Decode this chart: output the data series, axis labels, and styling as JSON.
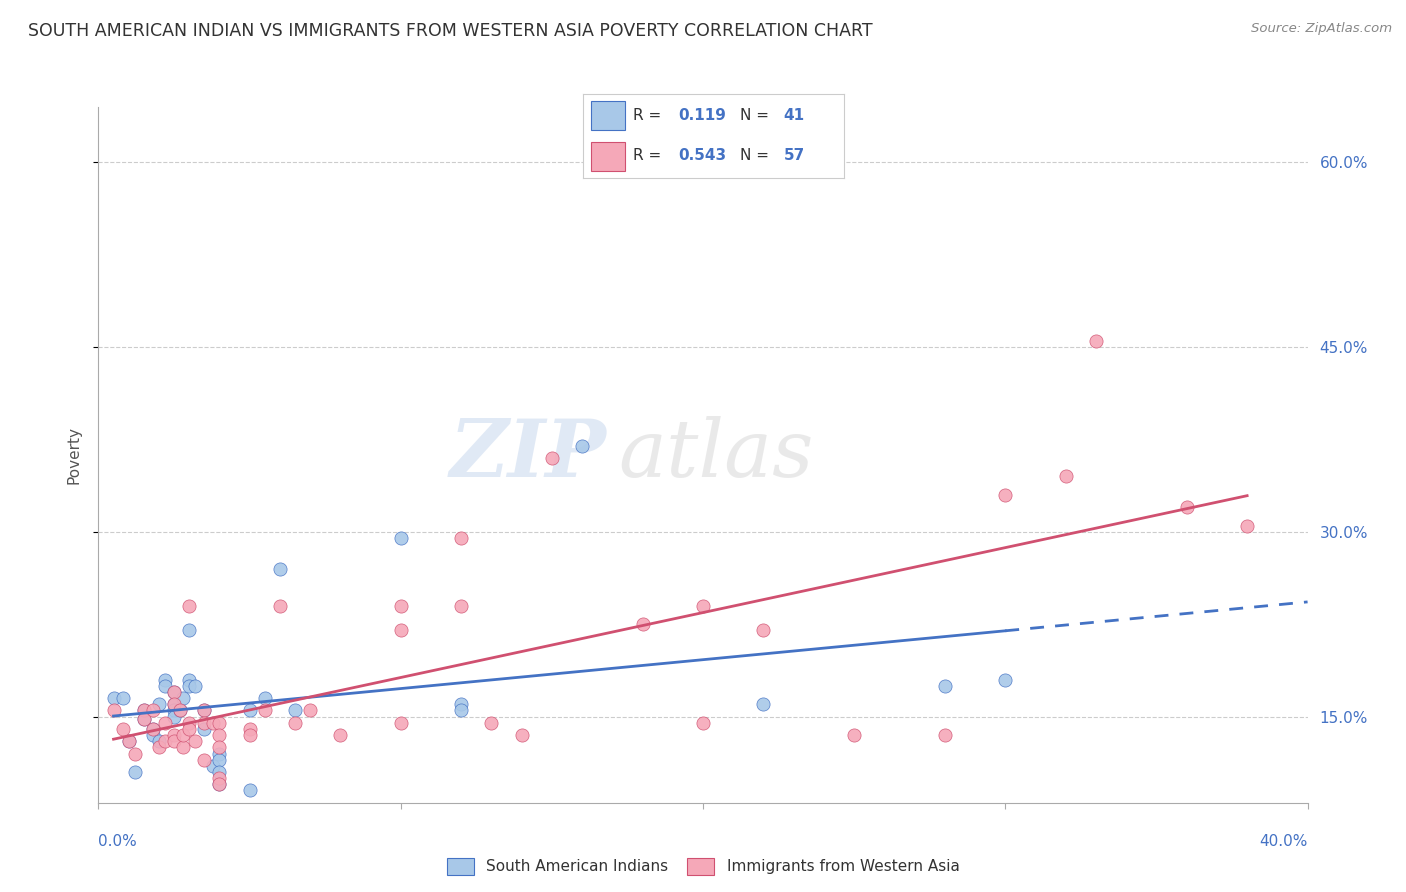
{
  "title": "SOUTH AMERICAN INDIAN VS IMMIGRANTS FROM WESTERN ASIA POVERTY CORRELATION CHART",
  "source": "Source: ZipAtlas.com",
  "ylabel": "Poverty",
  "ytick_labels": [
    "15.0%",
    "30.0%",
    "45.0%",
    "60.0%"
  ],
  "ytick_values": [
    0.15,
    0.3,
    0.45,
    0.6
  ],
  "xlim": [
    0.0,
    0.4
  ],
  "ylim": [
    0.08,
    0.645
  ],
  "legend1_r": "0.119",
  "legend1_n": "41",
  "legend2_r": "0.543",
  "legend2_n": "57",
  "legend_label1": "South American Indians",
  "legend_label2": "Immigrants from Western Asia",
  "watermark_zip": "ZIP",
  "watermark_atlas": "atlas",
  "blue_color": "#a8c8e8",
  "pink_color": "#f5a8b8",
  "blue_line_color": "#4472c4",
  "pink_line_color": "#d05070",
  "blue_scatter": [
    [
      0.005,
      0.165
    ],
    [
      0.008,
      0.165
    ],
    [
      0.01,
      0.13
    ],
    [
      0.012,
      0.105
    ],
    [
      0.015,
      0.155
    ],
    [
      0.015,
      0.148
    ],
    [
      0.018,
      0.14
    ],
    [
      0.018,
      0.135
    ],
    [
      0.02,
      0.16
    ],
    [
      0.02,
      0.13
    ],
    [
      0.022,
      0.18
    ],
    [
      0.022,
      0.175
    ],
    [
      0.025,
      0.16
    ],
    [
      0.025,
      0.155
    ],
    [
      0.025,
      0.15
    ],
    [
      0.025,
      0.17
    ],
    [
      0.027,
      0.155
    ],
    [
      0.028,
      0.165
    ],
    [
      0.03,
      0.22
    ],
    [
      0.03,
      0.18
    ],
    [
      0.03,
      0.175
    ],
    [
      0.032,
      0.175
    ],
    [
      0.035,
      0.155
    ],
    [
      0.035,
      0.14
    ],
    [
      0.038,
      0.11
    ],
    [
      0.04,
      0.12
    ],
    [
      0.04,
      0.115
    ],
    [
      0.04,
      0.105
    ],
    [
      0.04,
      0.095
    ],
    [
      0.05,
      0.09
    ],
    [
      0.05,
      0.155
    ],
    [
      0.055,
      0.165
    ],
    [
      0.06,
      0.27
    ],
    [
      0.065,
      0.155
    ],
    [
      0.1,
      0.295
    ],
    [
      0.12,
      0.16
    ],
    [
      0.12,
      0.155
    ],
    [
      0.16,
      0.37
    ],
    [
      0.22,
      0.16
    ],
    [
      0.28,
      0.175
    ],
    [
      0.3,
      0.18
    ]
  ],
  "pink_scatter": [
    [
      0.005,
      0.155
    ],
    [
      0.008,
      0.14
    ],
    [
      0.01,
      0.13
    ],
    [
      0.012,
      0.12
    ],
    [
      0.015,
      0.155
    ],
    [
      0.015,
      0.148
    ],
    [
      0.018,
      0.155
    ],
    [
      0.018,
      0.14
    ],
    [
      0.02,
      0.125
    ],
    [
      0.022,
      0.13
    ],
    [
      0.022,
      0.145
    ],
    [
      0.025,
      0.17
    ],
    [
      0.025,
      0.16
    ],
    [
      0.025,
      0.135
    ],
    [
      0.025,
      0.13
    ],
    [
      0.027,
      0.155
    ],
    [
      0.028,
      0.125
    ],
    [
      0.028,
      0.135
    ],
    [
      0.03,
      0.24
    ],
    [
      0.03,
      0.145
    ],
    [
      0.03,
      0.14
    ],
    [
      0.032,
      0.13
    ],
    [
      0.035,
      0.115
    ],
    [
      0.035,
      0.155
    ],
    [
      0.035,
      0.145
    ],
    [
      0.038,
      0.145
    ],
    [
      0.04,
      0.145
    ],
    [
      0.04,
      0.135
    ],
    [
      0.04,
      0.125
    ],
    [
      0.04,
      0.1
    ],
    [
      0.04,
      0.095
    ],
    [
      0.05,
      0.14
    ],
    [
      0.05,
      0.135
    ],
    [
      0.055,
      0.155
    ],
    [
      0.06,
      0.24
    ],
    [
      0.065,
      0.145
    ],
    [
      0.07,
      0.155
    ],
    [
      0.08,
      0.135
    ],
    [
      0.1,
      0.145
    ],
    [
      0.1,
      0.22
    ],
    [
      0.1,
      0.24
    ],
    [
      0.12,
      0.295
    ],
    [
      0.12,
      0.24
    ],
    [
      0.13,
      0.145
    ],
    [
      0.14,
      0.135
    ],
    [
      0.15,
      0.36
    ],
    [
      0.18,
      0.225
    ],
    [
      0.2,
      0.145
    ],
    [
      0.2,
      0.24
    ],
    [
      0.22,
      0.22
    ],
    [
      0.25,
      0.135
    ],
    [
      0.28,
      0.135
    ],
    [
      0.3,
      0.33
    ],
    [
      0.32,
      0.345
    ],
    [
      0.33,
      0.455
    ],
    [
      0.36,
      0.32
    ],
    [
      0.38,
      0.305
    ]
  ],
  "background_color": "#ffffff",
  "grid_color": "#cccccc"
}
